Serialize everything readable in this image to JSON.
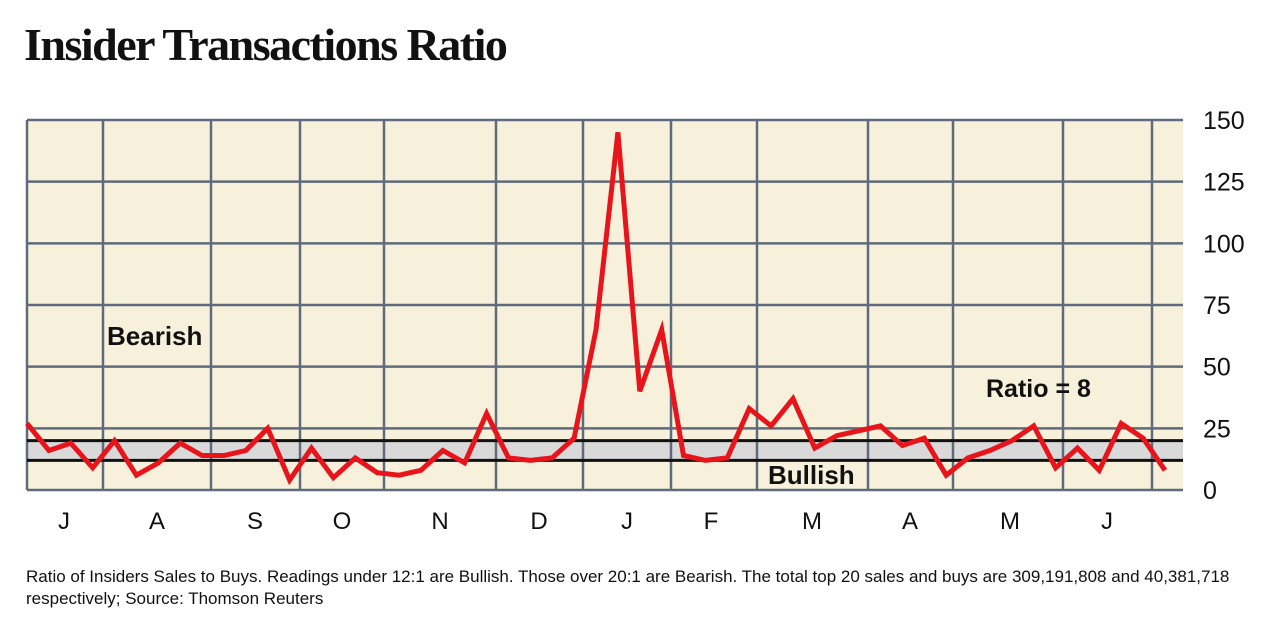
{
  "title": "Insider Transactions Ratio",
  "footnote": "Ratio of Insiders Sales to Buys. Readings under 12:1 are Bullish. Those over 20:1 are Bearish. The total top 20 sales and buys are 309,191,808 and 40,381,718 respectively; Source: Thomson Reuters",
  "colors": {
    "plot_bg": "#f7f1dc",
    "grid": "#5f6b7c",
    "line": "#e8141c",
    "band": "#d9d9d9",
    "threshold": "#111111"
  },
  "chart_data": {
    "type": "line",
    "title": "Insider Transactions Ratio",
    "xlabel": "",
    "ylabel": "",
    "ylim": [
      0,
      150
    ],
    "yticks": [
      0,
      25,
      50,
      75,
      100,
      125,
      150
    ],
    "ytick_position": "right",
    "grid": true,
    "months": [
      "J",
      "A",
      "S",
      "O",
      "N",
      "D",
      "J",
      "F",
      "M",
      "A",
      "M",
      "J"
    ],
    "thresholds": {
      "bullish_below": 12,
      "bearish_above": 20
    },
    "annotations": {
      "bearish": "Bearish",
      "bullish": "Bullish",
      "ratio": "Ratio = 8"
    },
    "series": [
      {
        "values": [
          27,
          16,
          19,
          9,
          20,
          6,
          11,
          19,
          14,
          14,
          16,
          25,
          4,
          17,
          5,
          13,
          7,
          6,
          8,
          16,
          11,
          31,
          13,
          12,
          13,
          21,
          65,
          145,
          40,
          65,
          14,
          12,
          13,
          33,
          26,
          37,
          17,
          22,
          24,
          26,
          18,
          21,
          6,
          13,
          16,
          20,
          26,
          9,
          17,
          8,
          27,
          21,
          8
        ]
      }
    ]
  }
}
